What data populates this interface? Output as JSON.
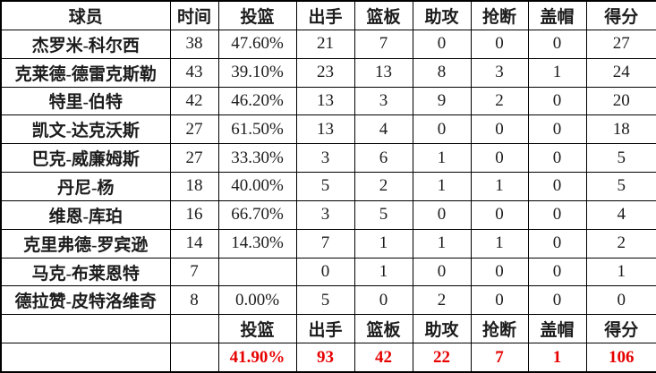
{
  "colors": {
    "totals_text": "#e60000",
    "body_text": "#1c1c1c",
    "border": "#000000",
    "background": "#ffffff"
  },
  "table": {
    "headers": [
      "球员",
      "时间",
      "投篮",
      "出手",
      "篮板",
      "助攻",
      "抢断",
      "盖帽",
      "得分"
    ],
    "rows": [
      [
        "杰罗米-科尔西",
        "38",
        "47.60%",
        "21",
        "7",
        "0",
        "0",
        "0",
        "27"
      ],
      [
        "克莱德-德雷克斯勒",
        "43",
        "39.10%",
        "23",
        "13",
        "8",
        "3",
        "1",
        "24"
      ],
      [
        "特里-伯特",
        "42",
        "46.20%",
        "13",
        "3",
        "9",
        "2",
        "0",
        "20"
      ],
      [
        "凯文-达克沃斯",
        "27",
        "61.50%",
        "13",
        "4",
        "0",
        "0",
        "0",
        "18"
      ],
      [
        "巴克-威廉姆斯",
        "27",
        "33.30%",
        "3",
        "6",
        "1",
        "0",
        "0",
        "5"
      ],
      [
        "丹尼-杨",
        "18",
        "40.00%",
        "5",
        "2",
        "1",
        "1",
        "0",
        "5"
      ],
      [
        "维恩-库珀",
        "16",
        "66.70%",
        "3",
        "5",
        "0",
        "0",
        "0",
        "4"
      ],
      [
        "克里弗德-罗宾逊",
        "14",
        "14.30%",
        "7",
        "1",
        "1",
        "1",
        "0",
        "2"
      ],
      [
        "马克-布莱恩特",
        "7",
        "",
        "0",
        "1",
        "0",
        "0",
        "0",
        "1"
      ],
      [
        "德拉赞-皮特洛维奇",
        "8",
        "0.00%",
        "5",
        "0",
        "2",
        "0",
        "0",
        "0"
      ]
    ],
    "footer_labels": [
      "",
      "",
      "投篮",
      "出手",
      "篮板",
      "助攻",
      "抢断",
      "盖帽",
      "得分"
    ],
    "totals": [
      "",
      "",
      "41.90%",
      "93",
      "42",
      "22",
      "7",
      "1",
      "106"
    ]
  }
}
